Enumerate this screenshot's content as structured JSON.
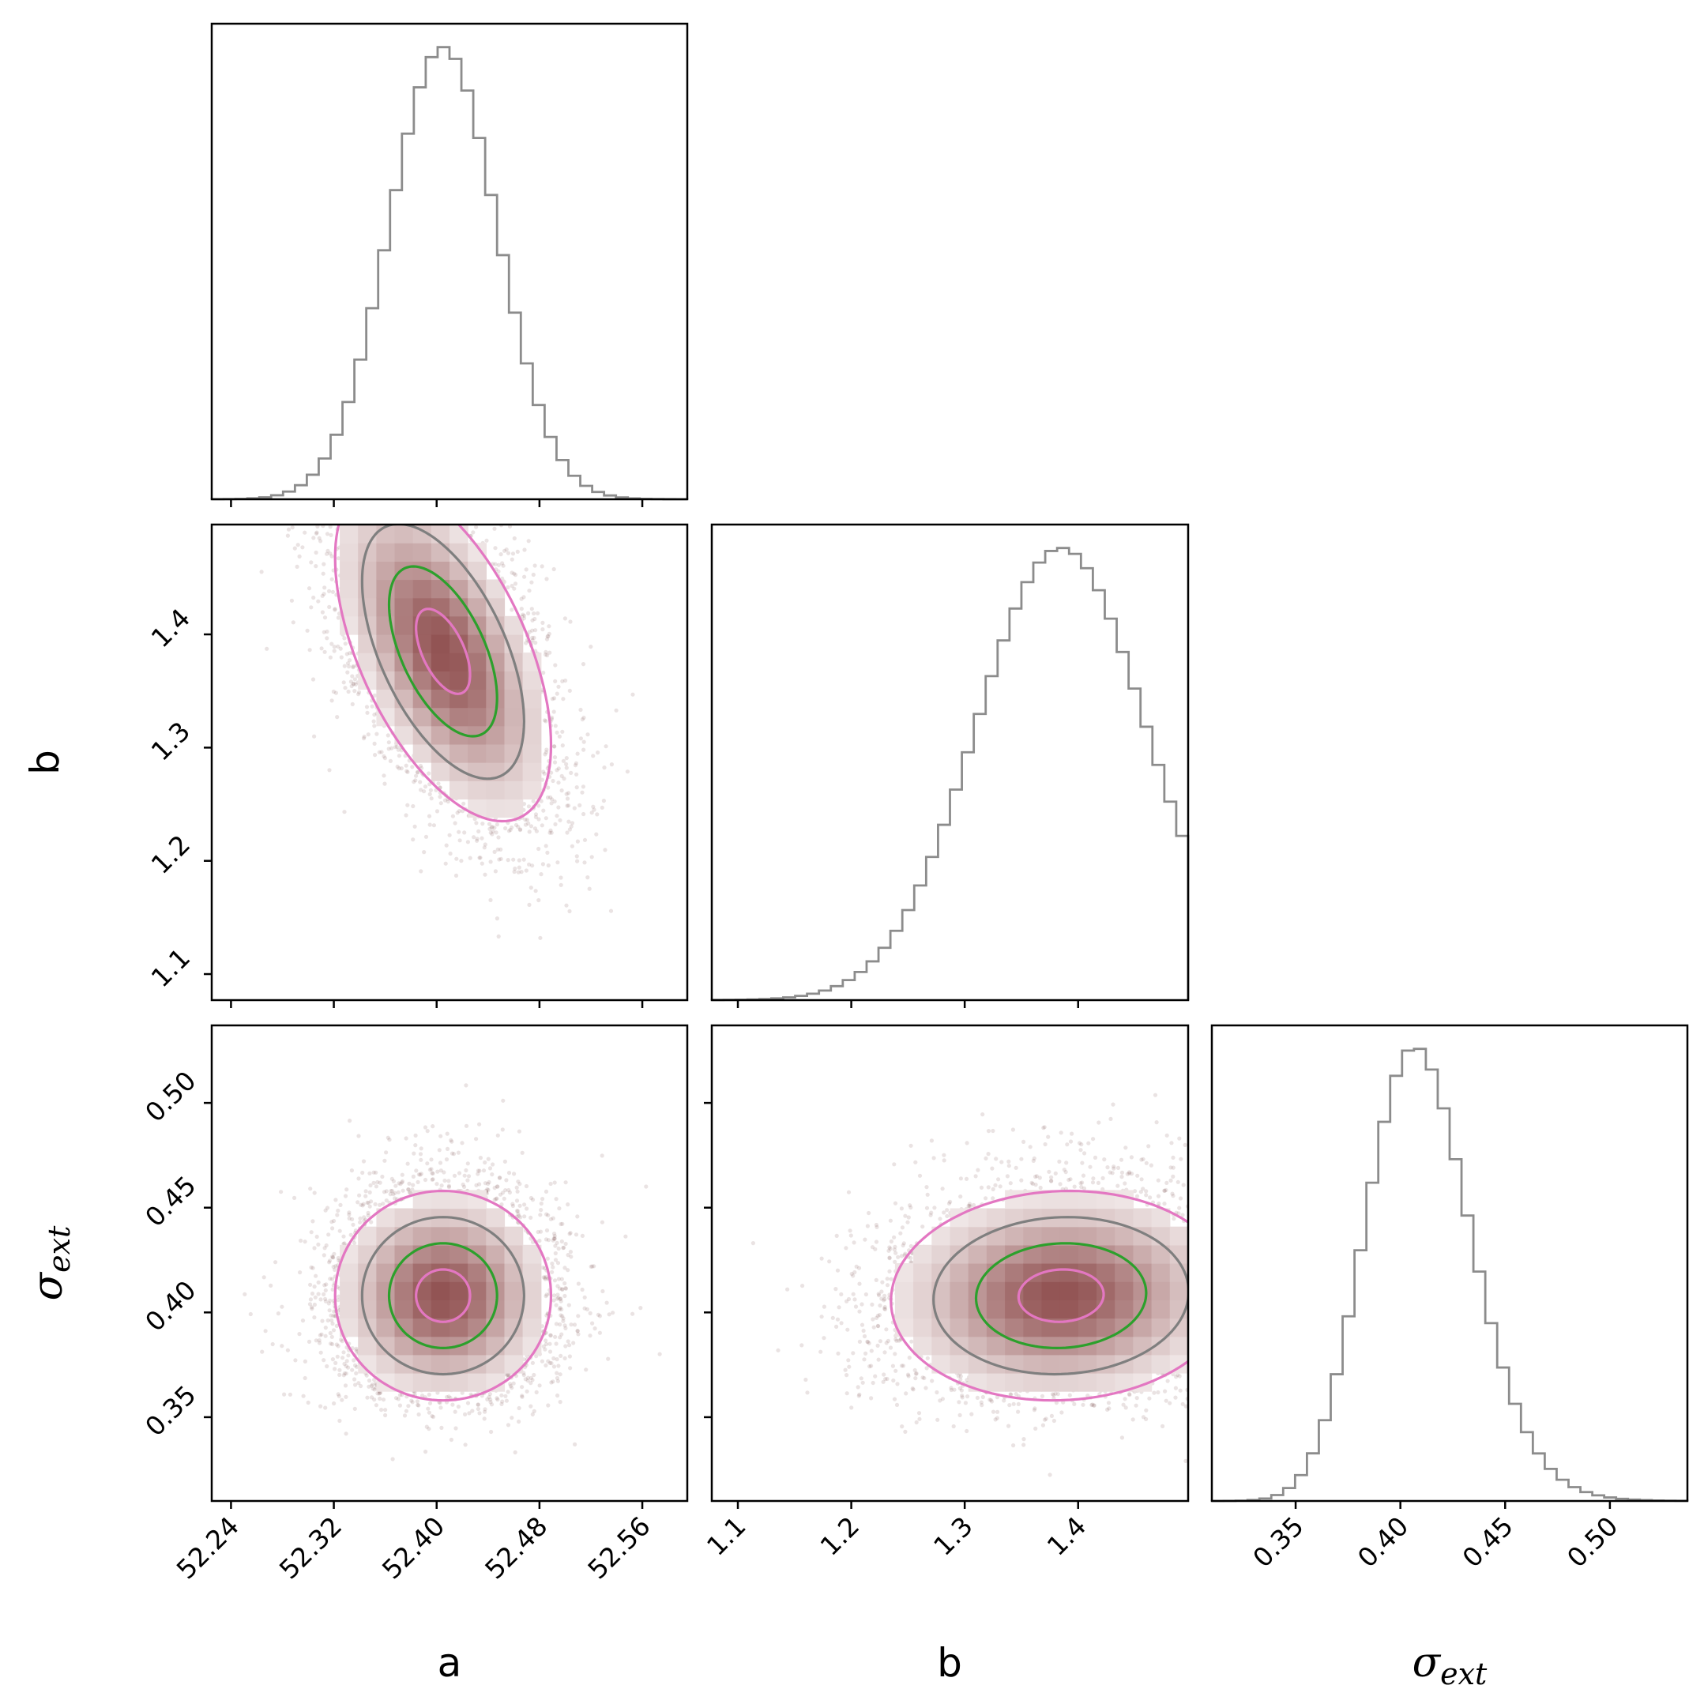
{
  "chart_data": {
    "type": "corner",
    "parameters": [
      "a",
      "b",
      "σ_ext"
    ],
    "axis_labels": {
      "a": "a",
      "b": "b",
      "sigma_ext": {
        "base": "σ",
        "sub": "ext"
      }
    },
    "ranges": {
      "a": [
        52.225,
        52.595
      ],
      "b": [
        1.077,
        1.497
      ],
      "sigma_ext": [
        0.31,
        0.537
      ]
    },
    "ticks": {
      "a": [
        "52.24",
        "52.32",
        "52.40",
        "52.48",
        "52.56"
      ],
      "b": [
        "1.1",
        "1.2",
        "1.3",
        "1.4"
      ],
      "sigma_ext": [
        "0.35",
        "0.40",
        "0.45",
        "0.50"
      ]
    },
    "histograms": {
      "a": {
        "mean": 52.405,
        "std": 0.042
      },
      "b": {
        "mean": 1.385,
        "std": 0.075
      },
      "sigma_ext": {
        "mean": 0.408,
        "std": 0.025,
        "skew": 0.3
      }
    },
    "joint": {
      "a_b": {
        "rho": -0.55
      },
      "a_sigma_ext": {
        "rho": 0.0
      },
      "b_sigma_ext": {
        "rho": 0.05
      }
    },
    "contour_levels_sigma": [
      0.5,
      1.0,
      1.5,
      2.0
    ],
    "colors": {
      "histogram": "#8c8c8c",
      "points": "#7b4e4e",
      "density_low": "#ffffff",
      "density_high": "#8c4a4a",
      "contour_inner": "#e377c2",
      "contour_1": "#2ca02c",
      "contour_2": "#7f7f7f",
      "contour_outer": "#e377c2"
    }
  }
}
